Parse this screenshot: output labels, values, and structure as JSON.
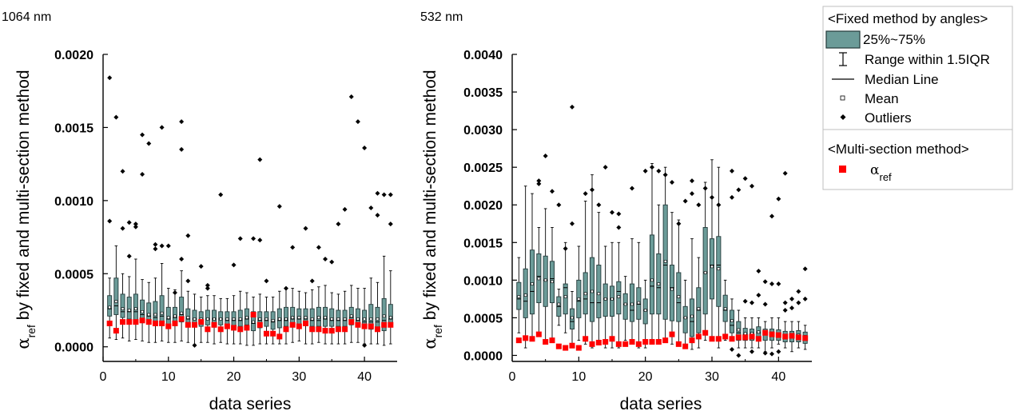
{
  "colors": {
    "box_fill": "#6b9b98",
    "box_stroke": "#233a3a",
    "marker": "#ff0000",
    "outlier": "#000000"
  },
  "legend": {
    "group1_title": "<Fixed method by angles>",
    "box": "25%~75%",
    "whisker": "Range within 1.5IQR",
    "median": "Median Line",
    "mean": "Mean",
    "outliers": "Outliers",
    "group2_title": "<Multi-section method>",
    "marker_sub": "ref"
  },
  "chart_data": [
    {
      "type": "box",
      "panel_title": "1064 nm",
      "xlabel": "data series",
      "ylabel_sub": "ref",
      "ylabel_rest": " by fixed and multi-section method",
      "xlim": [
        0,
        45
      ],
      "ylim": [
        -0.0001,
        0.002
      ],
      "xticks": [
        0,
        10,
        20,
        30,
        40
      ],
      "yticks": [
        0.0,
        0.0005,
        0.001,
        0.0015,
        0.002
      ],
      "ytick_labels": [
        "0.0000",
        "0.0005",
        "0.0010",
        "0.0015",
        "0.0020"
      ],
      "q1": [
        0.00021,
        0.00022,
        0.0002,
        0.00019,
        0.00018,
        0.00018,
        0.00017,
        0.00017,
        0.00017,
        0.00015,
        0.00016,
        0.00017,
        0.00016,
        0.00015,
        0.00014,
        0.00015,
        0.00015,
        0.00015,
        0.00014,
        0.00014,
        0.00014,
        0.00015,
        0.00011,
        0.00013,
        0.00014,
        0.00012,
        0.00013,
        0.00014,
        0.00014,
        0.00015,
        0.00015,
        0.00014,
        0.00014,
        0.00014,
        0.00014,
        0.00014,
        0.00014,
        0.00015,
        0.00014,
        0.00013,
        0.00012,
        0.00012,
        0.00011,
        0.00014
      ],
      "median": [
        0.00026,
        0.00028,
        0.00024,
        0.00024,
        0.00024,
        0.00022,
        0.00021,
        0.0002,
        0.00021,
        0.00019,
        0.0002,
        0.00022,
        0.00019,
        0.00019,
        0.00018,
        0.00019,
        0.00019,
        0.00019,
        0.00018,
        0.00018,
        0.00018,
        0.00019,
        0.00016,
        0.00018,
        0.00018,
        0.00017,
        0.00018,
        0.00018,
        0.00019,
        0.00019,
        0.00019,
        0.00018,
        0.00018,
        0.00019,
        0.00018,
        0.00018,
        0.00018,
        0.0002,
        0.00018,
        0.00017,
        0.00017,
        0.00017,
        0.00018,
        0.00019
      ],
      "q3": [
        0.00035,
        0.00047,
        0.00036,
        0.00034,
        0.00036,
        0.00032,
        0.0003,
        0.00031,
        0.00035,
        0.00027,
        0.00027,
        0.00034,
        0.00026,
        0.00025,
        0.00024,
        0.00025,
        0.00025,
        0.00024,
        0.00024,
        0.00024,
        0.00025,
        0.00026,
        0.00024,
        0.00024,
        0.00024,
        0.00024,
        0.00026,
        0.00027,
        0.00027,
        0.00026,
        0.00026,
        0.00026,
        0.00027,
        0.00027,
        0.00026,
        0.00025,
        0.00025,
        0.00027,
        0.00026,
        0.00025,
        0.00029,
        0.00027,
        0.00033,
        0.00029
      ],
      "low": [
        6e-05,
        5e-05,
        6e-05,
        4e-05,
        5e-05,
        4e-05,
        3e-05,
        3e-05,
        4e-05,
        3e-05,
        3e-05,
        4e-05,
        3e-05,
        1e-05,
        3e-05,
        3e-05,
        2e-05,
        3e-05,
        2e-05,
        2e-05,
        2e-05,
        1e-05,
        1e-05,
        2e-05,
        2e-05,
        2e-05,
        2e-05,
        2e-05,
        3e-05,
        4e-05,
        2e-05,
        2e-05,
        3e-05,
        2e-05,
        2e-05,
        2e-05,
        2e-05,
        3e-05,
        3e-05,
        2e-05,
        2e-05,
        2e-05,
        1e-05,
        2e-05
      ],
      "high": [
        0.00047,
        0.00069,
        0.0005,
        0.00048,
        0.0006,
        0.00046,
        0.00044,
        0.00047,
        0.00057,
        0.0004,
        0.00039,
        0.00052,
        0.00038,
        0.00036,
        0.00034,
        0.00035,
        0.00035,
        0.00033,
        0.00033,
        0.00035,
        0.00038,
        0.00037,
        0.00034,
        0.00036,
        0.00034,
        0.00034,
        0.00038,
        0.0004,
        0.0004,
        0.00038,
        0.00037,
        0.00039,
        0.00041,
        0.00042,
        0.00037,
        0.00036,
        0.00038,
        0.00042,
        0.0004,
        0.0004,
        0.00047,
        0.00044,
        0.00062,
        0.00052
      ],
      "mean": [
        0.00027,
        0.00031,
        0.00026,
        0.00025,
        0.00026,
        0.00024,
        0.00022,
        0.00022,
        0.00023,
        0.0002,
        0.00021,
        0.00023,
        0.0002,
        0.00019,
        0.00019,
        0.00019,
        0.00019,
        0.00019,
        0.00019,
        0.00019,
        0.00019,
        0.0002,
        0.00017,
        0.00019,
        0.00019,
        0.00018,
        0.00019,
        0.00019,
        0.0002,
        0.0002,
        0.0002,
        0.00019,
        0.0002,
        0.0002,
        0.00019,
        0.00019,
        0.00019,
        0.00021,
        0.00019,
        0.00019,
        0.00019,
        0.00019,
        0.00021,
        0.0002
      ],
      "outliers": [
        [
          1,
          0.00184
        ],
        [
          1,
          0.00086
        ],
        [
          2,
          0.00157
        ],
        [
          3,
          0.0012
        ],
        [
          3,
          0.00081
        ],
        [
          4,
          0.00085
        ],
        [
          4,
          0.00062
        ],
        [
          5,
          0.00084
        ],
        [
          5,
          0.00082
        ],
        [
          6,
          0.00145
        ],
        [
          6,
          0.00118
        ],
        [
          7,
          0.00139
        ],
        [
          8,
          0.0007
        ],
        [
          8,
          0.00067
        ],
        [
          9,
          0.0015
        ],
        [
          9,
          0.00069
        ],
        [
          10,
          0.00069
        ],
        [
          11,
          0.00037
        ],
        [
          12,
          0.00154
        ],
        [
          12,
          0.00135
        ],
        [
          12,
          0.0006
        ],
        [
          13,
          0.00076
        ],
        [
          13,
          0.00045
        ],
        [
          14,
          1e-05
        ],
        [
          15,
          0.00055
        ],
        [
          16,
          0.00042
        ],
        [
          16,
          0.0004
        ],
        [
          18,
          0.00104
        ],
        [
          20,
          0.00056
        ],
        [
          21,
          0.00074
        ],
        [
          23,
          0.00074
        ],
        [
          24,
          0.00128
        ],
        [
          24,
          0.00073
        ],
        [
          25,
          0.00045
        ],
        [
          27,
          0.00096
        ],
        [
          28,
          0.0004
        ],
        [
          29,
          0.00068
        ],
        [
          31,
          0.00081
        ],
        [
          32,
          0.00045
        ],
        [
          33,
          0.00068
        ],
        [
          34,
          0.0006
        ],
        [
          35,
          0.00058
        ],
        [
          36,
          0.00084
        ],
        [
          37,
          0.00094
        ],
        [
          38,
          0.00171
        ],
        [
          39,
          0.00154
        ],
        [
          40,
          0.00136
        ],
        [
          40,
          1e-05
        ],
        [
          41,
          0.00095
        ],
        [
          42,
          0.00105
        ],
        [
          42,
          0.0009
        ],
        [
          43,
          0.00104
        ],
        [
          44,
          0.00104
        ],
        [
          44,
          0.00084
        ]
      ],
      "alpha_ref": [
        0.00016,
        0.00011,
        0.00017,
        0.00017,
        0.00017,
        0.00018,
        0.00017,
        0.00016,
        0.00016,
        0.00014,
        0.00016,
        0.00019,
        0.00015,
        0.00015,
        0.00017,
        0.00012,
        0.00015,
        0.00012,
        0.00014,
        0.00013,
        0.00012,
        0.00013,
        0.00022,
        0.00015,
        9e-05,
        9e-05,
        7e-05,
        0.00012,
        0.00015,
        0.00014,
        0.00016,
        0.00012,
        0.00012,
        0.00011,
        0.00011,
        0.00012,
        0.00012,
        0.00017,
        0.00015,
        0.00014,
        0.00014,
        0.00012,
        0.00015,
        0.00015
      ]
    },
    {
      "type": "box",
      "panel_title": "532 nm",
      "xlabel": "data series",
      "ylabel_sub": "ref",
      "ylabel_rest": " by fixed and multi-section method",
      "xlim": [
        0,
        45
      ],
      "ylim": [
        -8e-05,
        0.004
      ],
      "xticks": [
        0,
        10,
        20,
        30,
        40
      ],
      "yticks": [
        0.0,
        0.0005,
        0.001,
        0.0015,
        0.002,
        0.0025,
        0.003,
        0.0035,
        0.004
      ],
      "ytick_labels": [
        "0.0000",
        "0.0005",
        "0.0010",
        "0.0015",
        "0.0020",
        "0.0025",
        "0.0030",
        "0.0035",
        "0.0040"
      ],
      "q1": [
        0.00061,
        0.0005,
        0.00055,
        0.0007,
        0.00065,
        0.0007,
        0.00052,
        0.00055,
        0.00035,
        0.0005,
        0.00055,
        0.00045,
        0.0005,
        0.00052,
        0.00052,
        0.00055,
        0.00048,
        0.00045,
        0.00048,
        0.00042,
        0.00055,
        0.00055,
        0.00048,
        0.00046,
        0.00045,
        0.0003,
        0.00025,
        0.0003,
        0.00055,
        0.00075,
        0.00065,
        0.00045,
        0.0003,
        0.0002,
        0.0002,
        0.0002,
        0.00022,
        0.0002,
        0.0002,
        0.0002,
        0.00018,
        0.00018,
        0.00018,
        0.00016
      ],
      "median": [
        0.00075,
        0.00072,
        0.00085,
        0.00105,
        0.001,
        0.00102,
        0.00065,
        0.0009,
        0.00045,
        0.00072,
        0.00075,
        0.0007,
        0.0007,
        0.00075,
        0.00075,
        0.00085,
        0.00068,
        0.0006,
        0.00068,
        0.0006,
        0.00092,
        0.0009,
        0.0012,
        0.0009,
        0.0007,
        0.0005,
        0.00045,
        0.0006,
        0.0011,
        0.0012,
        0.0012,
        0.0006,
        0.0004,
        0.0003,
        0.00028,
        0.00028,
        0.0003,
        0.00028,
        0.00028,
        0.00028,
        0.00025,
        0.00025,
        0.00025,
        0.00024
      ],
      "q3": [
        0.00097,
        0.00115,
        0.0014,
        0.00135,
        0.00132,
        0.00125,
        0.00078,
        0.00095,
        0.00062,
        0.001,
        0.0011,
        0.0013,
        0.0012,
        0.00095,
        0.00092,
        0.00098,
        0.00082,
        0.00095,
        0.0009,
        0.00075,
        0.0016,
        0.00135,
        0.002,
        0.0012,
        0.0011,
        0.00065,
        0.00075,
        0.0009,
        0.0017,
        0.00155,
        0.00158,
        0.0008,
        0.0006,
        0.00045,
        0.00036,
        0.00035,
        0.00038,
        0.00035,
        0.00035,
        0.00034,
        0.00032,
        0.00032,
        0.00033,
        0.00031
      ],
      "low": [
        0.0003,
        0.0001,
        0.00025,
        0.00025,
        0.00015,
        0.0002,
        0.0004,
        0.0003,
        0.00015,
        0.0002,
        0.00015,
        0.0001,
        0.00015,
        0.0001,
        0.0001,
        0.0001,
        0.0002,
        0.0002,
        0.0001,
        0.0001,
        0.0002,
        0.0002,
        0.0002,
        0.00015,
        0.00015,
        0.0001,
        8e-05,
        0.0001,
        0.0002,
        0.0002,
        0.0001,
        0.0002,
        0.0002,
        0.0001,
        0.0001,
        0.0001,
        0.0001,
        5e-05,
        0.0001,
        0.00015,
        0.0001,
        5e-05,
        0.0001,
        8e-05
      ],
      "high": [
        0.0013,
        0.00225,
        0.00215,
        0.0017,
        0.00195,
        0.0017,
        0.00088,
        0.0015,
        0.00085,
        0.00145,
        0.00205,
        0.0024,
        0.0019,
        0.00145,
        0.0015,
        0.0015,
        0.00105,
        0.00155,
        0.0015,
        0.001,
        0.00255,
        0.002,
        0.0025,
        0.0019,
        0.0018,
        0.001,
        0.00155,
        0.0013,
        0.0023,
        0.0026,
        0.0025,
        0.001,
        0.00075,
        0.0006,
        0.0005,
        0.0005,
        0.0005,
        0.00045,
        0.0005,
        0.0005,
        0.00045,
        0.00045,
        0.00045,
        0.0004
      ],
      "mean": [
        0.00078,
        0.0008,
        0.00095,
        0.00102,
        0.001,
        0.00098,
        0.00068,
        0.00078,
        0.0005,
        0.00075,
        0.00082,
        0.00085,
        0.00082,
        0.00075,
        0.00075,
        0.00078,
        0.00068,
        0.00068,
        0.0007,
        0.0006,
        0.001,
        0.00095,
        0.00125,
        0.00088,
        0.00078,
        0.0005,
        0.00052,
        0.00062,
        0.0011,
        0.00118,
        0.00115,
        0.00062,
        0.00046,
        0.00034,
        0.00029,
        0.00029,
        0.00031,
        0.00029,
        0.00029,
        0.00028,
        0.00026,
        0.00026,
        0.00027,
        0.00025
      ],
      "outliers": [
        [
          4,
          0.00232
        ],
        [
          4,
          0.00228
        ],
        [
          5,
          0.00265
        ],
        [
          6,
          0.00218
        ],
        [
          7,
          0.002
        ],
        [
          8,
          0.00142
        ],
        [
          9,
          0.0033
        ],
        [
          9,
          0.00175
        ],
        [
          11,
          0.00215
        ],
        [
          12,
          0.0022
        ],
        [
          13,
          0.002
        ],
        [
          14,
          0.0025
        ],
        [
          15,
          0.0019
        ],
        [
          16,
          0.00188
        ],
        [
          16,
          0.0017
        ],
        [
          18,
          0.00222
        ],
        [
          20,
          0.00245
        ],
        [
          21,
          0.0025
        ],
        [
          22,
          0.00245
        ],
        [
          23,
          0.0024
        ],
        [
          24,
          0.0023
        ],
        [
          25,
          0.00175
        ],
        [
          26,
          0.00205
        ],
        [
          27,
          0.00215
        ],
        [
          27,
          0.00232
        ],
        [
          28,
          0.002
        ],
        [
          29,
          0.00222
        ],
        [
          30,
          0.0021
        ],
        [
          31,
          0.002
        ],
        [
          33,
          0.0021
        ],
        [
          33,
          0.00245
        ],
        [
          34,
          0.0022
        ],
        [
          35,
          0.00235
        ],
        [
          35,
          0.00072
        ],
        [
          36,
          0.00225
        ],
        [
          36,
          0.0007
        ],
        [
          37,
          0.00112
        ],
        [
          37,
          0.0008
        ],
        [
          38,
          0.00098
        ],
        [
          38,
          0.00068
        ],
        [
          39,
          0.00185
        ],
        [
          39,
          0.00095
        ],
        [
          40,
          0.00208
        ],
        [
          40,
          0.00095
        ],
        [
          41,
          0.00242
        ],
        [
          41,
          0.0007
        ],
        [
          41,
          0.0006
        ],
        [
          42,
          0.00075
        ],
        [
          42,
          0.00063
        ],
        [
          43,
          0.00085
        ],
        [
          43,
          0.0007
        ],
        [
          44,
          0.00115
        ],
        [
          44,
          0.00075
        ],
        [
          33,
          8e-05
        ],
        [
          34,
          0.0
        ],
        [
          36,
          5e-05
        ],
        [
          38,
          3e-05
        ],
        [
          39,
          2e-05
        ],
        [
          40,
          5e-05
        ]
      ],
      "alpha_ref": [
        0.0002,
        0.00023,
        0.00022,
        0.00028,
        0.00018,
        0.0002,
        0.00012,
        0.0001,
        0.00013,
        0.0001,
        0.00022,
        0.00015,
        0.00017,
        0.00018,
        0.00022,
        0.00015,
        0.00015,
        0.00018,
        0.00015,
        0.00018,
        0.00018,
        0.00018,
        0.0002,
        0.00028,
        0.00015,
        0.00012,
        0.0002,
        0.00025,
        0.0003,
        0.00022,
        0.00022,
        0.00025,
        0.00022,
        0.00024,
        0.00024,
        0.00025,
        0.00022,
        0.0003,
        0.00028,
        0.00027,
        0.00025,
        0.00026,
        0.00024,
        0.00023
      ]
    }
  ]
}
